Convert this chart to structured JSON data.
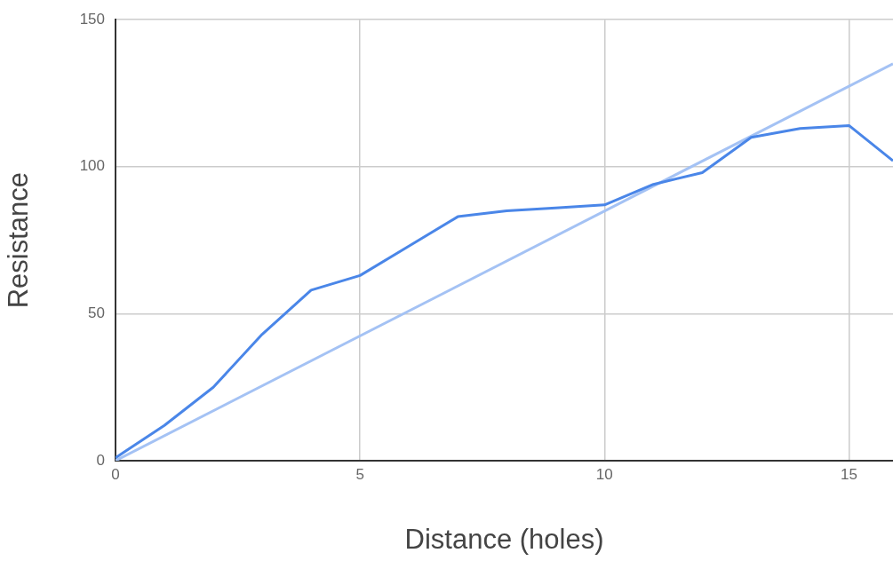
{
  "chart_data": {
    "type": "line",
    "xlabel": "Distance (holes)",
    "ylabel": "Resistance",
    "xlim": [
      0,
      15.9
    ],
    "xticks": [
      0,
      5,
      10,
      15
    ],
    "ylim": [
      0,
      150
    ],
    "yticks": [
      0,
      50,
      100,
      150
    ],
    "grid": true,
    "legend": false,
    "marker": "none",
    "line_style": "solid",
    "series": [
      {
        "color": "#4a86e8",
        "x": [
          0,
          1,
          2,
          3,
          4,
          5,
          6,
          7,
          8,
          9,
          10,
          11,
          12,
          13,
          14,
          15,
          15.9
        ],
        "values": [
          1,
          12,
          25,
          43,
          58,
          63,
          73,
          83,
          85,
          86,
          87,
          94,
          98,
          110,
          113,
          114,
          102
        ]
      },
      {
        "type": "line",
        "color": "#a4c2f4",
        "x": [
          0,
          15.9
        ],
        "values": [
          0,
          135
        ]
      }
    ]
  }
}
